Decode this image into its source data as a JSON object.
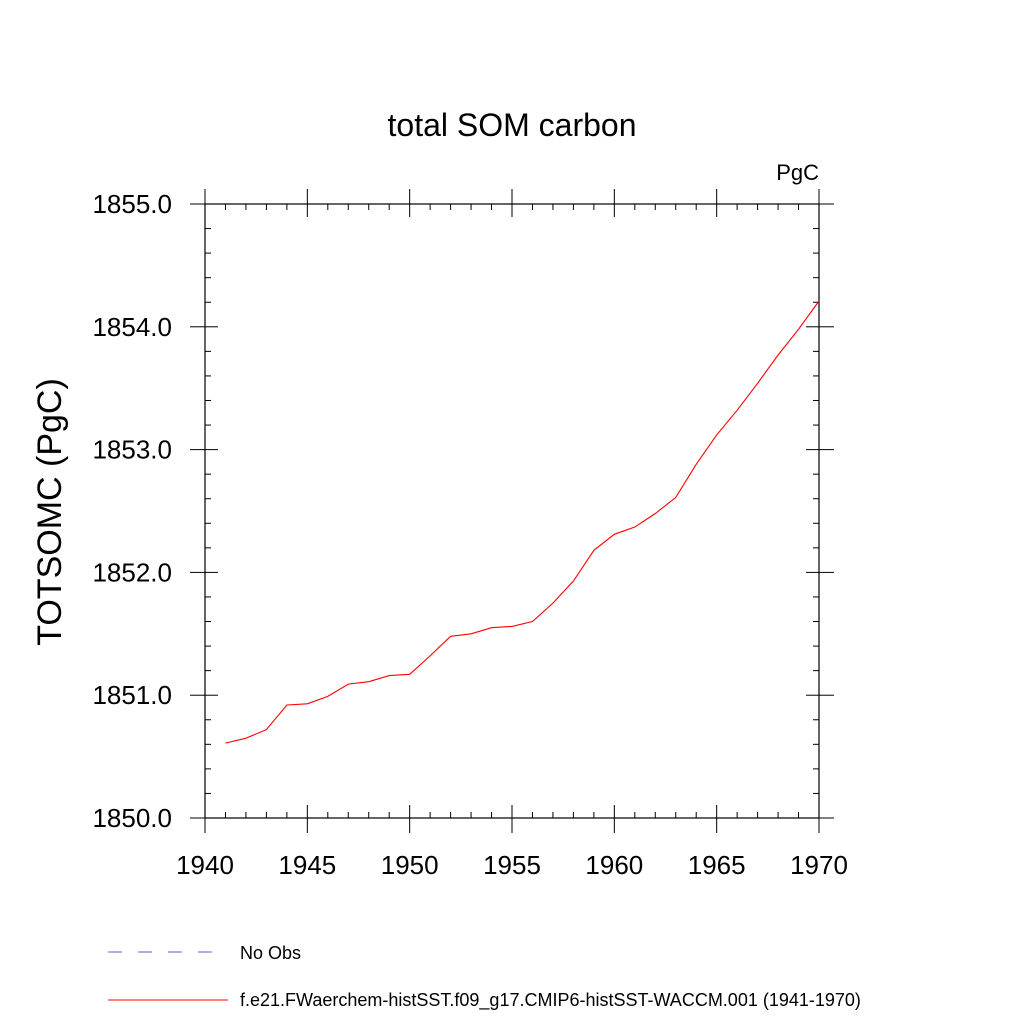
{
  "chart_data": {
    "type": "line",
    "title": "total SOM carbon",
    "units": "PgC",
    "ylabel": "TOTSOMC  (PgC)",
    "xlabel": "",
    "xlim": [
      1940,
      1970
    ],
    "ylim": [
      1850.0,
      1855.0
    ],
    "xticks": [
      "1940",
      "1945",
      "1950",
      "1955",
      "1960",
      "1965",
      "1970"
    ],
    "yticks": [
      "1850.0",
      "1851.0",
      "1852.0",
      "1853.0",
      "1854.0",
      "1855.0"
    ],
    "grid": false,
    "legend_position": "bottom",
    "series": [
      {
        "name": "No Obs",
        "color": "#6a5acd",
        "dash": "dashed",
        "x": [],
        "y": []
      },
      {
        "name": "f.e21.FWaerchem-histSST.f09_g17.CMIP6-histSST-WACCM.001 (1941-1970)",
        "color": "#ff0000",
        "dash": "solid",
        "x": [
          1941,
          1942,
          1943,
          1944,
          1945,
          1946,
          1947,
          1948,
          1949,
          1950,
          1951,
          1952,
          1953,
          1954,
          1955,
          1956,
          1957,
          1958,
          1959,
          1960,
          1961,
          1962,
          1963,
          1964,
          1965,
          1966,
          1967,
          1968,
          1969,
          1970
        ],
        "y": [
          1850.61,
          1850.65,
          1850.72,
          1850.92,
          1850.93,
          1850.99,
          1851.09,
          1851.11,
          1851.16,
          1851.17,
          1851.32,
          1851.48,
          1851.5,
          1851.55,
          1851.56,
          1851.6,
          1851.75,
          1851.93,
          1852.18,
          1852.31,
          1852.37,
          1852.48,
          1852.61,
          1852.88,
          1853.12,
          1853.32,
          1853.54,
          1853.77,
          1853.98,
          1854.21
        ]
      }
    ]
  }
}
